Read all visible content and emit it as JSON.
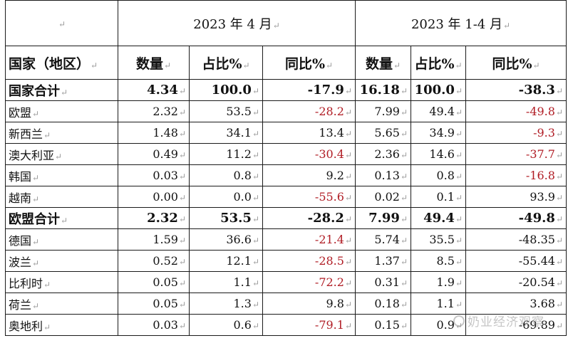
{
  "mark": "↵",
  "header": {
    "period_april": "2023 年 4 月",
    "period_jan_apr": "2023 年 1-4 月"
  },
  "columns": {
    "region": "国家（地区）",
    "quantity": "数量",
    "share": "占比%",
    "yoy": "同比%"
  },
  "rows": [
    {
      "name": "国家合计",
      "bold": true,
      "q1": "4.34",
      "s1": "100.0",
      "y1": "-17.9",
      "q2": "16.18",
      "s2": "100.0",
      "y2": "-38.3"
    },
    {
      "name": "欧盟",
      "bold": false,
      "q1": "2.32",
      "s1": "53.5",
      "y1": "-28.2",
      "q2": "7.99",
      "s2": "49.4",
      "y2": "-49.8"
    },
    {
      "name": "新西兰",
      "bold": false,
      "q1": "1.48",
      "s1": "34.1",
      "y1": "13.4",
      "q2": "5.65",
      "s2": "34.9",
      "y2": "-9.3"
    },
    {
      "name": "澳大利亚",
      "bold": false,
      "q1": "0.49",
      "s1": "11.2",
      "y1": "-30.4",
      "q2": "2.36",
      "s2": "14.6",
      "y2": "-37.7"
    },
    {
      "name": "韩国",
      "bold": false,
      "q1": "0.03",
      "s1": "0.8",
      "y1": "9.2",
      "q2": "0.13",
      "s2": "0.8",
      "y2": "-16.8"
    },
    {
      "name": "越南",
      "bold": false,
      "q1": "0.00",
      "s1": "0.0",
      "y1": "-55.6",
      "q2": "0.02",
      "s2": "0.1",
      "y2": "93.9"
    },
    {
      "name": "欧盟合计",
      "bold": true,
      "q1": "2.32",
      "s1": "53.5",
      "y1": "-28.2",
      "q2": "7.99",
      "s2": "49.4",
      "y2": "-49.8"
    },
    {
      "name": "德国",
      "bold": false,
      "q1": "1.59",
      "s1": "36.6",
      "y1": "-21.4",
      "q2": "5.74",
      "s2": "35.5",
      "y2": "-48.35"
    },
    {
      "name": "波兰",
      "bold": false,
      "q1": "0.52",
      "s1": "12.1",
      "y1": "-28.5",
      "q2": "1.37",
      "s2": "8.5",
      "y2": "-55.44"
    },
    {
      "name": "比利时",
      "bold": false,
      "q1": "0.05",
      "s1": "1.1",
      "y1": "-72.2",
      "q2": "0.31",
      "s2": "1.9",
      "y2": "-20.54"
    },
    {
      "name": "荷兰",
      "bold": false,
      "q1": "0.05",
      "s1": "1.3",
      "y1": "9.8",
      "q2": "0.18",
      "s2": "1.1",
      "y2": "3.68"
    },
    {
      "name": "奥地利",
      "bold": false,
      "q1": "0.03",
      "s1": "0.6",
      "y1": "-79.1",
      "q2": "0.15",
      "s2": "0.9",
      "y2": "-69.89"
    }
  ],
  "red_cells": {
    "y1": [
      "欧盟",
      "澳大利亚",
      "越南",
      "德国",
      "波兰",
      "比利时",
      "奥地利"
    ],
    "y2": [
      "欧盟",
      "新西兰",
      "澳大利亚",
      "韩国"
    ]
  },
  "colors": {
    "negative_highlight": "#b01c24",
    "text": "#111111",
    "border": "#1a1a1a"
  },
  "watermark": {
    "text": "奶业经济观察",
    "icon": "wechat-logo-icon"
  }
}
